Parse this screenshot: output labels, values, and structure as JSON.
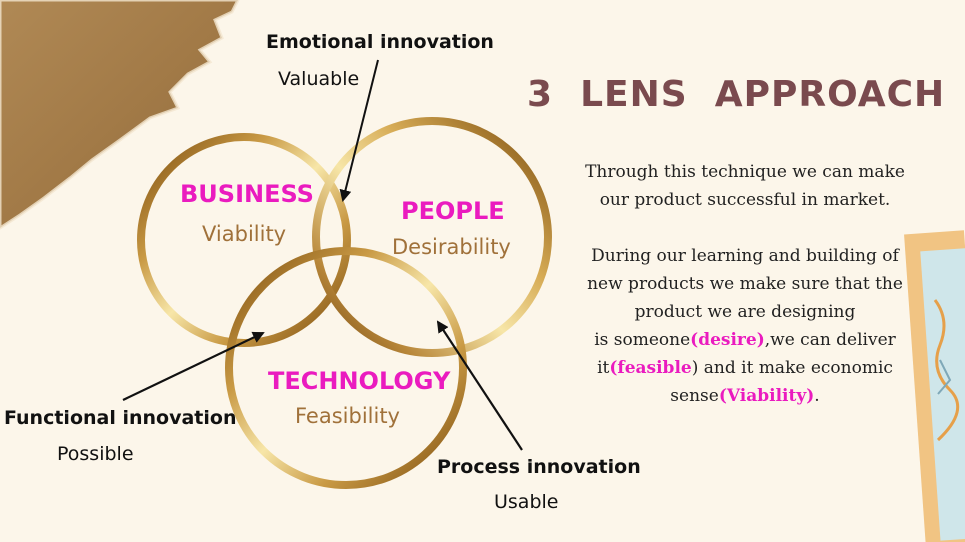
{
  "heading": "3  LENS  APPROACH",
  "lenses": [
    {
      "title": "BUSINESS",
      "subtitle": "Viability"
    },
    {
      "title": "PEOPLE",
      "subtitle": "Desirability"
    },
    {
      "title": "TECHNOLOGY",
      "subtitle": "Feasibility"
    }
  ],
  "callouts": [
    {
      "title": "Emotional innovation",
      "subtitle": "Valuable"
    },
    {
      "title": "Functional innovation",
      "subtitle": "Possible"
    },
    {
      "title": "Process innovation",
      "subtitle": "Usable"
    }
  ],
  "description": {
    "para1": [
      "Through this technique we can make",
      "our product successful in market."
    ],
    "para2_lines": [
      "During our learning and building of",
      "new products we make sure that the",
      "product we are designing"
    ],
    "line4_prefix": "is someone",
    "line4_hl": "(desire)",
    "line4_suffix": ",we can deliver",
    "line5_prefix": "it",
    "line5_hl": "(feasible",
    "line5_suffix": ") and it make economic",
    "line6_prefix": "sense",
    "line6_hl": "(Viability)",
    "line6_suffix": "."
  },
  "colors": {
    "accent": "#ea1bbf",
    "heading": "#7a4a4e",
    "subtitle": "#a0713a",
    "ring_dark": "#8a5a12",
    "ring_light": "#f7e6a8"
  }
}
